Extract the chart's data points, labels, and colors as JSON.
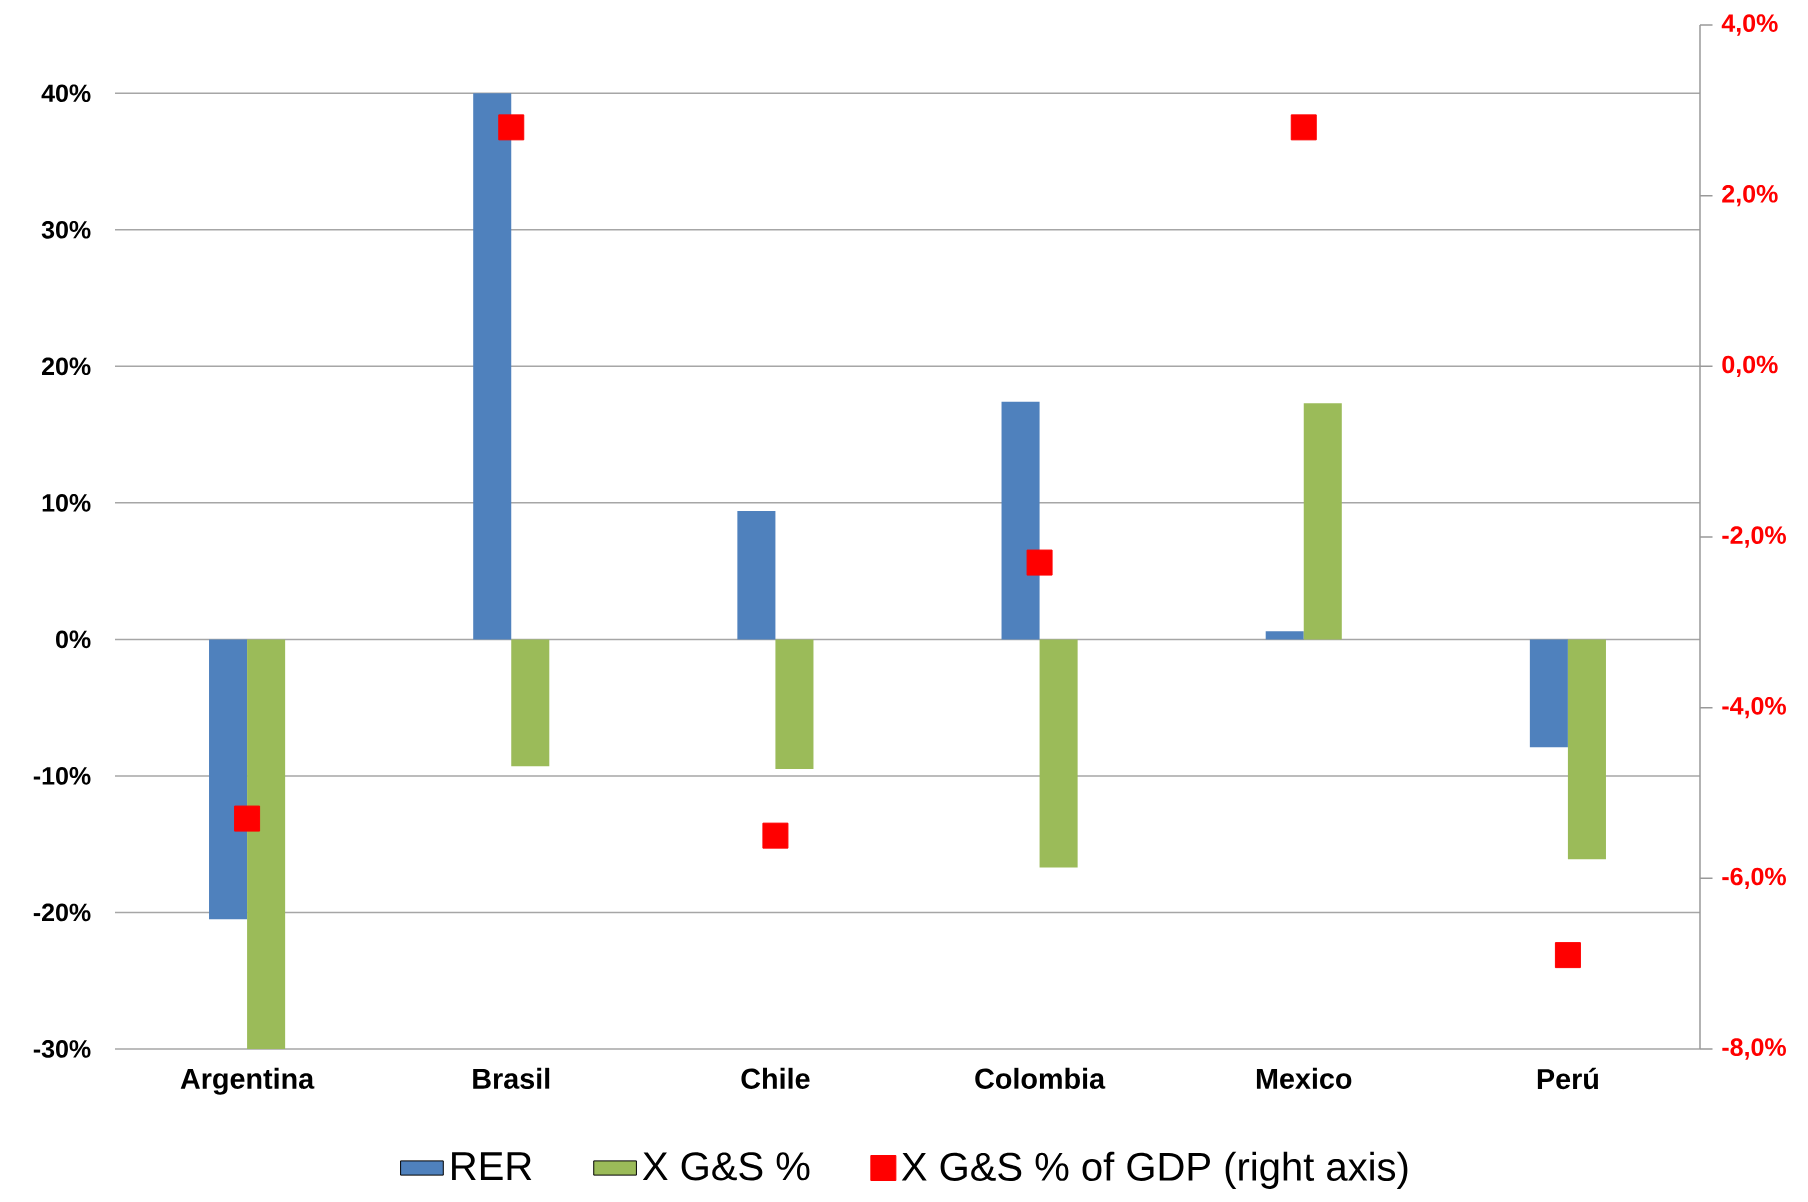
{
  "chart_data": {
    "type": "bar",
    "categories": [
      "Argentina",
      "Brasil",
      "Chile",
      "Colombia",
      "Mexico",
      "Perú"
    ],
    "series": [
      {
        "name": "RER",
        "color": "#4f81bd",
        "values": [
          -20.5,
          40,
          9.4,
          17.4,
          0.6,
          -7.9
        ]
      },
      {
        "name": "X G&S %",
        "color": "#9bbb59",
        "values": [
          -30,
          -9.3,
          -9.5,
          -16.7,
          17.3,
          -16.1
        ]
      },
      {
        "name": "X G&S % of GDP (right axis)",
        "type": "scatter",
        "axis": "y2",
        "marker": "square",
        "color": "#ff0000",
        "values": [
          -5.3,
          2.8,
          -5.5,
          -2.3,
          2.8,
          -6.9
        ]
      }
    ],
    "ylim": [
      -30,
      45
    ],
    "yticks": [
      {
        "value": -30,
        "label": "-30%"
      },
      {
        "value": -20,
        "label": "-20%"
      },
      {
        "value": -10,
        "label": "-10%"
      },
      {
        "value": 0,
        "label": "0%"
      },
      {
        "value": 10,
        "label": "10%"
      },
      {
        "value": 20,
        "label": "20%"
      },
      {
        "value": 30,
        "label": "30%"
      },
      {
        "value": 40,
        "label": "40%"
      }
    ],
    "y2lim": [
      -8,
      4
    ],
    "y2ticks": [
      {
        "value": -8,
        "label": "-8,0%"
      },
      {
        "value": -6,
        "label": "-6,0%"
      },
      {
        "value": -4,
        "label": "-4,0%"
      },
      {
        "value": -2,
        "label": "-2,0%"
      },
      {
        "value": 0,
        "label": "0,0%"
      },
      {
        "value": 2,
        "label": "2,0%"
      },
      {
        "value": 4,
        "label": "4,0%"
      }
    ],
    "grid": "y",
    "legend": "bottom"
  }
}
